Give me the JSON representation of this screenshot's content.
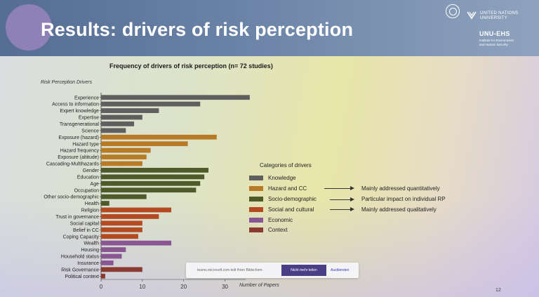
{
  "slide": {
    "title": "Results: drivers of risk perception",
    "logo": {
      "un_text_line1": "UNITED NATIONS",
      "un_text_line2": "UNIVERSITY",
      "institute": "UNU-EHS",
      "institute_sub_line1": "Institute for Environment",
      "institute_sub_line2": "and Human Security"
    },
    "page_number": "12"
  },
  "popup": {
    "text": "teams.microsoft.com teilt Ihren Bildschirm.",
    "button": "Nicht mehr teilen",
    "link": "Ausblenden"
  },
  "legend": {
    "title": "Categories of drivers",
    "items": [
      {
        "label": "Knowledge",
        "color": "#5f5f5f"
      },
      {
        "label": "Hazard and CC",
        "color": "#b87a25"
      },
      {
        "label": "Socio-demographic",
        "color": "#4f5a2a"
      },
      {
        "label": "Social and cultural",
        "color": "#b44a22"
      },
      {
        "label": "Economic",
        "color": "#8a5692"
      },
      {
        "label": "Context",
        "color": "#8a3a2e"
      }
    ],
    "notes": [
      "Mainly addressed quantitatively",
      "Particular impact on individual RP",
      "Mainly addressed qualitatively"
    ]
  },
  "chart_data": {
    "type": "bar",
    "orientation": "horizontal",
    "title": "Frequency of drivers of risk perception (n= 72 studies)",
    "ylabel": "Risk Perception Drivers",
    "xlabel": "Number of Papers",
    "xlim": [
      0,
      35
    ],
    "xticks": [
      0,
      10,
      20,
      30
    ],
    "grid": false,
    "categories": [
      "Experience",
      "Access to information",
      "Expert knowledge",
      "Expertise",
      "Transgenerational",
      "Science",
      "Exposure (hazard)",
      "Hazard type",
      "Hazard frequency",
      "Exposure (altitude)",
      "Cascading-Multihazards",
      "Gender",
      "Education",
      "Age",
      "Occupation",
      "Other socio-demographic",
      "Health",
      "Religion",
      "Trust in governance",
      "Social capital",
      "Belief in CC",
      "Coping Capacity",
      "Wealth",
      "Housing",
      "Household status",
      "Insurance",
      "Risk Governance",
      "Political context"
    ],
    "values": [
      36,
      24,
      14,
      10,
      8,
      6,
      28,
      21,
      12,
      11,
      10,
      26,
      25,
      24,
      23,
      11,
      2,
      17,
      14,
      10,
      10,
      9,
      17,
      6,
      5,
      3,
      10,
      1
    ],
    "groups": [
      "Knowledge",
      "Knowledge",
      "Knowledge",
      "Knowledge",
      "Knowledge",
      "Knowledge",
      "Hazard and CC",
      "Hazard and CC",
      "Hazard and CC",
      "Hazard and CC",
      "Hazard and CC",
      "Socio-demographic",
      "Socio-demographic",
      "Socio-demographic",
      "Socio-demographic",
      "Socio-demographic",
      "Socio-demographic",
      "Social and cultural",
      "Social and cultural",
      "Social and cultural",
      "Social and cultural",
      "Social and cultural",
      "Economic",
      "Economic",
      "Economic",
      "Economic",
      "Context",
      "Context"
    ]
  }
}
